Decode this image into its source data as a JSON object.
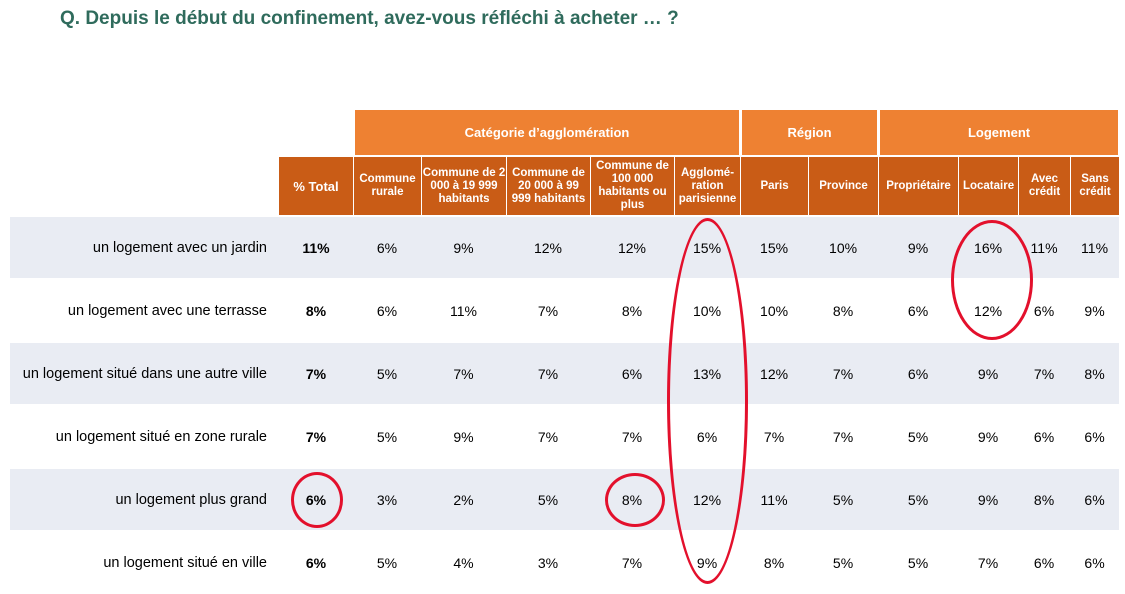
{
  "title": "Q. Depuis le début du confinement, avez-vous réfléchi à acheter … ?",
  "groups": {
    "agglo": "Catégorie d’agglomération",
    "region": "Région",
    "logement": "Logement"
  },
  "columns": {
    "total": "% Total",
    "c1": "Commune rurale",
    "c2": "Commune de 2 000 à 19 999 habitants",
    "c3": "Commune de 20 000 à 99 999 habitants",
    "c4": "Commune de 100 000 habitants ou plus",
    "c5": "Agglomé-ration parisienne",
    "c6": "Paris",
    "c7": "Province",
    "c8": "Propriétaire",
    "c9": "Locataire",
    "c10": "Avec crédit",
    "c11": "Sans crédit"
  },
  "rows": [
    {
      "label": "un logement avec un jardin",
      "values": [
        "11%",
        "6%",
        "9%",
        "12%",
        "12%",
        "15%",
        "15%",
        "10%",
        "9%",
        "16%",
        "11%",
        "11%"
      ]
    },
    {
      "label": "un logement avec une terrasse",
      "values": [
        "8%",
        "6%",
        "11%",
        "7%",
        "8%",
        "10%",
        "10%",
        "8%",
        "6%",
        "12%",
        "6%",
        "9%"
      ]
    },
    {
      "label": "un logement situé dans une autre ville",
      "values": [
        "7%",
        "5%",
        "7%",
        "7%",
        "6%",
        "13%",
        "12%",
        "7%",
        "6%",
        "9%",
        "7%",
        "8%"
      ]
    },
    {
      "label": "un logement situé en zone rurale",
      "values": [
        "7%",
        "5%",
        "9%",
        "7%",
        "7%",
        "6%",
        "7%",
        "7%",
        "5%",
        "9%",
        "6%",
        "6%"
      ]
    },
    {
      "label": "un logement plus grand",
      "values": [
        "6%",
        "3%",
        "2%",
        "5%",
        "8%",
        "12%",
        "11%",
        "5%",
        "5%",
        "9%",
        "8%",
        "6%"
      ]
    },
    {
      "label": "un logement situé en ville",
      "values": [
        "6%",
        "5%",
        "4%",
        "3%",
        "7%",
        "9%",
        "8%",
        "5%",
        "5%",
        "7%",
        "6%",
        "6%"
      ]
    }
  ]
}
